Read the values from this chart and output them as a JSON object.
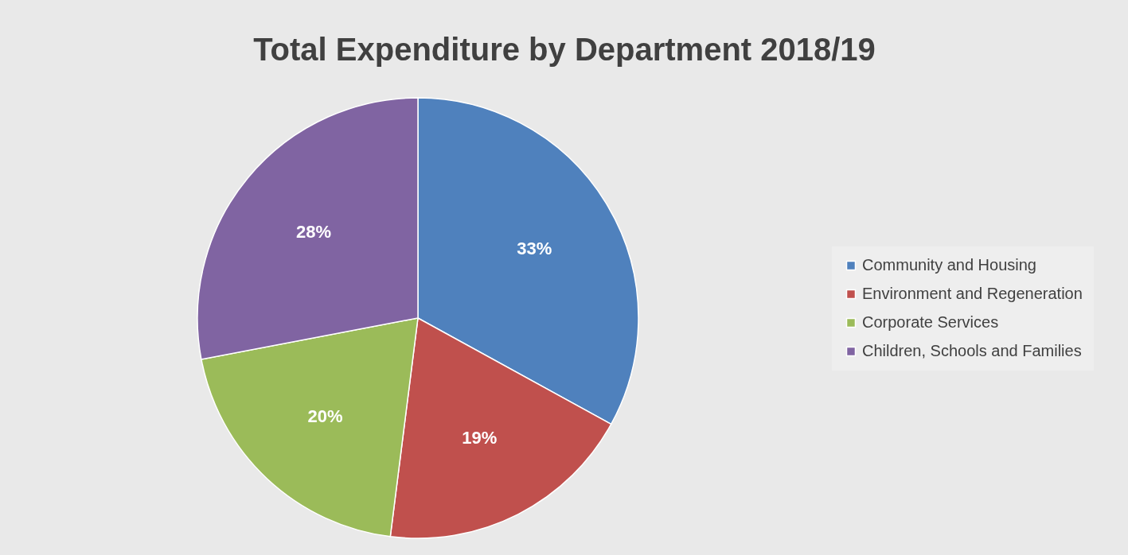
{
  "chart_data": {
    "type": "pie",
    "title": "Total Expenditure by Department 2018/19",
    "categories": [
      "Community and Housing",
      "Environment and Regeneration",
      "Corporate Services",
      "Children, Schools and Families"
    ],
    "values": [
      33,
      19,
      20,
      28
    ],
    "colors": [
      "#4f81bd",
      "#c0504d",
      "#9bbb59",
      "#8064a2"
    ],
    "value_labels": [
      "33%",
      "19%",
      "20%",
      "28%"
    ],
    "legend": "right"
  }
}
